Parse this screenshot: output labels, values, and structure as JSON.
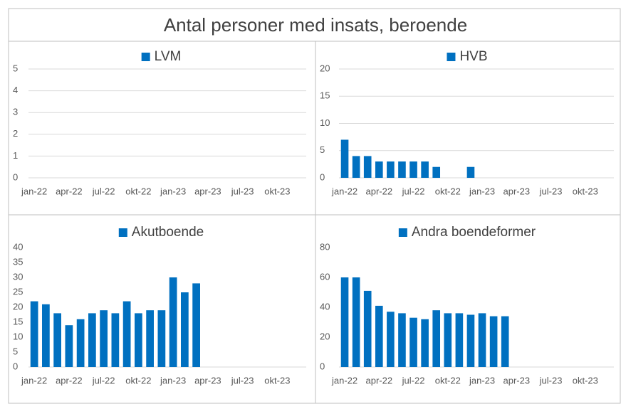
{
  "title": "Antal personer med insats, beroende",
  "chart_data": [
    {
      "type": "bar",
      "categories": [
        "jan-22",
        null,
        null,
        "apr-22",
        null,
        null,
        "jul-22",
        null,
        null,
        "okt-22",
        null,
        null,
        "jan-23",
        null,
        null,
        "apr-23",
        null,
        null,
        "jul-23",
        null,
        null,
        "okt-23",
        null,
        null
      ],
      "series": [
        {
          "name": "LVM",
          "color": "#0070c0",
          "values": [
            null,
            null,
            null,
            null,
            null,
            null,
            null,
            null,
            null,
            null,
            null,
            null,
            null,
            null,
            null,
            null,
            null,
            null,
            null,
            null,
            null,
            null,
            null,
            null
          ]
        }
      ],
      "ylim": [
        0,
        5
      ],
      "yticks": [
        0,
        1,
        2,
        3,
        4,
        5
      ],
      "grid": true,
      "legend": "top"
    },
    {
      "type": "bar",
      "categories": [
        "jan-22",
        null,
        null,
        "apr-22",
        null,
        null,
        "jul-22",
        null,
        null,
        "okt-22",
        null,
        null,
        "jan-23",
        null,
        null,
        "apr-23",
        null,
        null,
        "jul-23",
        null,
        null,
        "okt-23",
        null,
        null
      ],
      "series": [
        {
          "name": "HVB",
          "color": "#0070c0",
          "values": [
            7,
            4,
            4,
            3,
            3,
            3,
            3,
            3,
            2,
            null,
            null,
            2,
            null,
            null,
            null,
            null,
            null,
            null,
            null,
            null,
            null,
            null,
            null,
            null
          ]
        }
      ],
      "ylim": [
        0,
        20
      ],
      "yticks": [
        0,
        5,
        10,
        15,
        20
      ],
      "grid": true,
      "legend": "top"
    },
    {
      "type": "bar",
      "categories": [
        "jan-22",
        null,
        null,
        "apr-22",
        null,
        null,
        "jul-22",
        null,
        null,
        "okt-22",
        null,
        null,
        "jan-23",
        null,
        null,
        "apr-23",
        null,
        null,
        "jul-23",
        null,
        null,
        "okt-23",
        null,
        null
      ],
      "series": [
        {
          "name": "Akutboende",
          "color": "#0070c0",
          "values": [
            22,
            21,
            18,
            14,
            16,
            18,
            19,
            18,
            22,
            18,
            19,
            19,
            30,
            25,
            28,
            null,
            null,
            null,
            null,
            null,
            null,
            null,
            null,
            null
          ]
        }
      ],
      "ylim": [
        0,
        40
      ],
      "yticks": [
        0,
        5,
        10,
        15,
        20,
        25,
        30,
        35,
        40
      ],
      "grid": false,
      "legend": "top"
    },
    {
      "type": "bar",
      "categories": [
        "jan-22",
        null,
        null,
        "apr-22",
        null,
        null,
        "jul-22",
        null,
        null,
        "okt-22",
        null,
        null,
        "jan-23",
        null,
        null,
        "apr-23",
        null,
        null,
        "jul-23",
        null,
        null,
        "okt-23",
        null,
        null
      ],
      "series": [
        {
          "name": "Andra boendeformer",
          "color": "#0070c0",
          "values": [
            60,
            60,
            51,
            41,
            37,
            36,
            33,
            32,
            38,
            36,
            36,
            35,
            36,
            34,
            34,
            null,
            null,
            null,
            null,
            null,
            null,
            null,
            null,
            null
          ]
        }
      ],
      "ylim": [
        0,
        80
      ],
      "yticks": [
        0,
        20,
        40,
        60,
        80
      ],
      "grid": false,
      "legend": "top"
    }
  ]
}
